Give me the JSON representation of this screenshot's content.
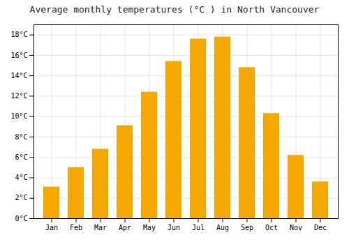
{
  "chart_data": {
    "type": "bar",
    "title": "Average monthly temperatures (°C ) in North Vancouver",
    "categories": [
      "Jan",
      "Feb",
      "Mar",
      "Apr",
      "May",
      "Jun",
      "Jul",
      "Aug",
      "Sep",
      "Oct",
      "Nov",
      "Dec"
    ],
    "values": [
      3.1,
      5.0,
      6.8,
      9.1,
      12.4,
      15.4,
      17.6,
      17.8,
      14.8,
      10.3,
      6.2,
      3.6
    ],
    "color": "#F5A800",
    "ylim": [
      0,
      19
    ],
    "yticks": [
      {
        "value": 0,
        "label": "0°C"
      },
      {
        "value": 2,
        "label": "2°C"
      },
      {
        "value": 4,
        "label": "4°C"
      },
      {
        "value": 6,
        "label": "6°C"
      },
      {
        "value": 8,
        "label": "8°C"
      },
      {
        "value": 10,
        "label": "10°C"
      },
      {
        "value": 12,
        "label": "12°C"
      },
      {
        "value": 14,
        "label": "14°C"
      },
      {
        "value": 16,
        "label": "16°C"
      },
      {
        "value": 18,
        "label": "18°C"
      }
    ],
    "grid": true
  }
}
